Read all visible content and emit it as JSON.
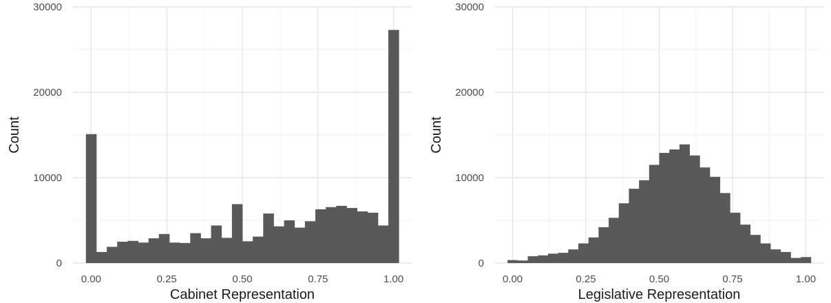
{
  "chart_data": [
    {
      "type": "bar",
      "title": "",
      "xlabel": "Cabinet Representation",
      "ylabel": "Count",
      "xlim": [
        -0.06,
        1.06
      ],
      "ylim": [
        0,
        30000
      ],
      "xticks": [
        0,
        0.25,
        0.5,
        0.75,
        1
      ],
      "xtick_labels": [
        "0.00",
        "0.25",
        "0.50",
        "0.75",
        "1.00"
      ],
      "yticks": [
        0,
        10000,
        20000,
        30000
      ],
      "ytick_labels": [
        "0",
        "10000",
        "20000",
        "30000"
      ],
      "grid": true,
      "bar_color": "#595959",
      "bin_width": 0.0345,
      "bin_centers": [
        0.0,
        0.0345,
        0.069,
        0.1034,
        0.1379,
        0.1724,
        0.2069,
        0.2414,
        0.2759,
        0.3103,
        0.3448,
        0.3793,
        0.4138,
        0.4483,
        0.4828,
        0.5172,
        0.5517,
        0.5862,
        0.6207,
        0.6552,
        0.6897,
        0.7241,
        0.7586,
        0.7931,
        0.8276,
        0.8621,
        0.8966,
        0.931,
        0.9655,
        1.0
      ],
      "values": [
        15100,
        1300,
        1900,
        2500,
        2600,
        2400,
        2900,
        3400,
        2400,
        2350,
        3500,
        2900,
        4400,
        2950,
        6900,
        2550,
        3100,
        5800,
        4300,
        5000,
        4150,
        4900,
        6300,
        6550,
        6700,
        6450,
        6050,
        5900,
        4400,
        27300
      ]
    },
    {
      "type": "bar",
      "title": "",
      "xlabel": "Legislative Representation",
      "ylabel": "Count",
      "xlim": [
        -0.06,
        1.06
      ],
      "ylim": [
        0,
        30000
      ],
      "xticks": [
        0,
        0.25,
        0.5,
        0.75,
        1
      ],
      "xtick_labels": [
        "0.00",
        "0.25",
        "0.50",
        "0.75",
        "1.00"
      ],
      "yticks": [
        0,
        10000,
        20000,
        30000
      ],
      "ytick_labels": [
        "0",
        "10000",
        "20000",
        "30000"
      ],
      "grid": true,
      "bar_color": "#595959",
      "bin_width": 0.0345,
      "bin_centers": [
        0.0,
        0.0345,
        0.069,
        0.1034,
        0.1379,
        0.1724,
        0.2069,
        0.2414,
        0.2759,
        0.3103,
        0.3448,
        0.3793,
        0.4138,
        0.4483,
        0.4828,
        0.5172,
        0.5517,
        0.5862,
        0.6207,
        0.6552,
        0.6897,
        0.7241,
        0.7586,
        0.7931,
        0.8276,
        0.8621,
        0.8966,
        0.931,
        0.9655,
        1.0
      ],
      "values": [
        350,
        300,
        800,
        900,
        1100,
        1200,
        1600,
        2300,
        3000,
        4200,
        5300,
        7000,
        8700,
        9700,
        11500,
        12900,
        13300,
        13900,
        12600,
        11200,
        10100,
        8200,
        5900,
        4500,
        3300,
        2300,
        1600,
        1300,
        600,
        700
      ]
    }
  ]
}
